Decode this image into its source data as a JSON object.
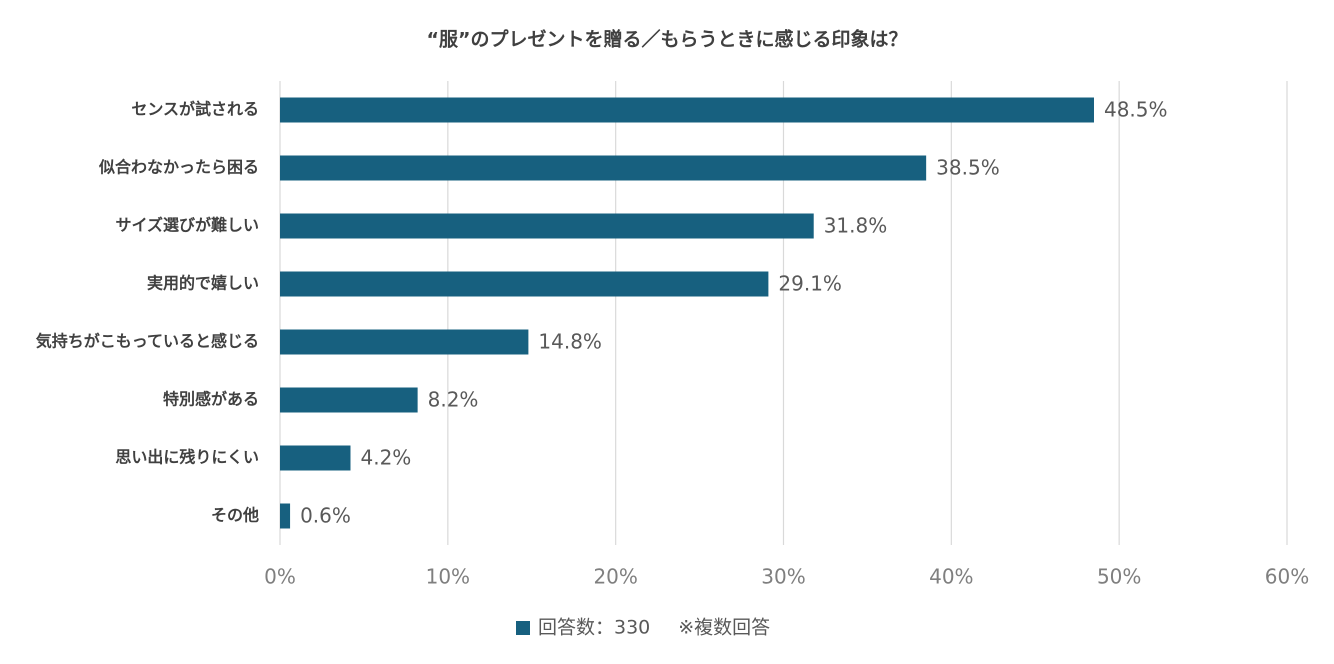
{
  "chart_data": {
    "type": "bar",
    "orientation": "horizontal",
    "title": "“服”のプレゼントを贈る／もらうときに感じる印象は？",
    "categories": [
      "センスが試される",
      "似合わなかったら困る",
      "サイズ選びが難しい",
      "実用的で嬉しい",
      "気持ちがこもっていると感じる",
      "特別感がある",
      "思い出に残りにくい",
      "その他"
    ],
    "series": [
      {
        "name": "回答数：330",
        "color": "#17607f",
        "values": [
          48.5,
          38.5,
          31.8,
          29.1,
          14.8,
          8.2,
          4.2,
          0.6
        ],
        "value_labels": [
          "48.5%",
          "38.5%",
          "31.8%",
          "29.1%",
          "14.8%",
          "8.2%",
          "4.2%",
          "0.6%"
        ]
      }
    ],
    "note": "※複数回答",
    "xlim": [
      0,
      60
    ],
    "xticks": [
      {
        "value": 0,
        "label": "0%"
      },
      {
        "value": 10,
        "label": "10%"
      },
      {
        "value": 20,
        "label": "20%"
      },
      {
        "value": 30,
        "label": "30%"
      },
      {
        "value": 40,
        "label": "40%"
      },
      {
        "value": 50,
        "label": "50%"
      },
      {
        "value": 60,
        "label": "60%"
      }
    ],
    "grid": true,
    "legend": "bottom"
  }
}
